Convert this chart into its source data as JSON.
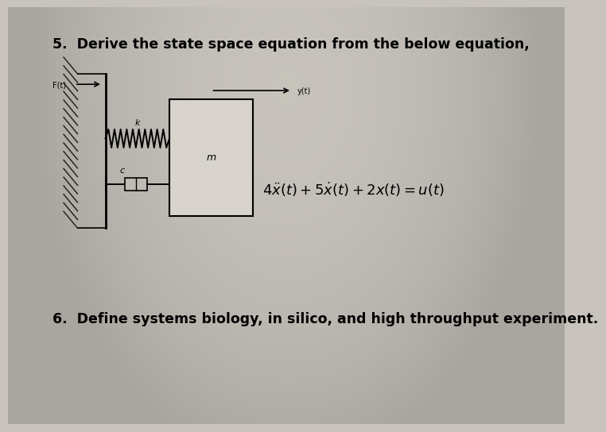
{
  "background_color": "#c8c3bc",
  "title_text": "5.  Derive the state space equation from the below equation,",
  "title_fontsize": 12.5,
  "title_bold": true,
  "equation_text": "$4 \\ddot{x}(t) + 5\\dot{x}(t) + 2x(t)= u(t)$",
  "equation_fontsize": 13,
  "q6_text": "6.  Define systems biology, in silico, and high throughput experiment.",
  "q6_fontsize": 12.5,
  "q6_bold": true,
  "label_k": "k",
  "label_c": "c",
  "label_m": "m",
  "label_Ft": "F(t)",
  "label_yt": "y(t)"
}
